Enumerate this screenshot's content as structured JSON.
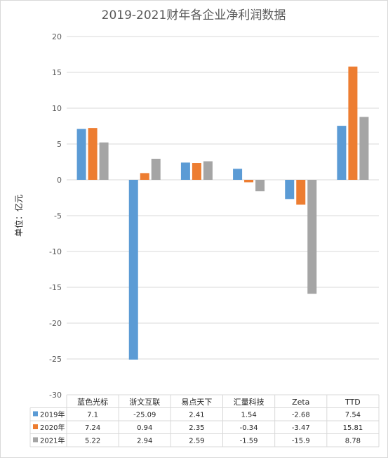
{
  "chart_data": {
    "type": "bar",
    "title": "2019-2021财年各企业净利润数据",
    "xlabel": "",
    "ylabel": "单位：亿元",
    "ylim": [
      -30,
      20
    ],
    "yticks": [
      20,
      15,
      10,
      5,
      0,
      -5,
      -10,
      -15,
      -20,
      -25,
      -30
    ],
    "grid": true,
    "legend": "data-table",
    "categories": [
      "蓝色光标",
      "浙文互联",
      "易点天下",
      "汇量科技",
      "Zeta",
      "TTD"
    ],
    "series": [
      {
        "name": "2019年",
        "color": "#5b9bd5",
        "values": [
          7.1,
          -25.09,
          2.41,
          1.54,
          -2.68,
          7.54
        ]
      },
      {
        "name": "2020年",
        "color": "#ed7d31",
        "values": [
          7.24,
          0.94,
          2.35,
          -0.34,
          -3.47,
          15.81
        ]
      },
      {
        "name": "2021年",
        "color": "#a5a5a5",
        "values": [
          5.22,
          2.94,
          2.59,
          -1.59,
          -15.9,
          8.78
        ]
      }
    ],
    "table_values": [
      [
        "7.1",
        "-25.09",
        "2.41",
        "1.54",
        "-2.68",
        "7.54"
      ],
      [
        "7.24",
        "0.94",
        "2.35",
        "-0.34",
        "-3.47",
        "15.81"
      ],
      [
        "5.22",
        "2.94",
        "2.59",
        "-1.59",
        "-15.9",
        "8.78"
      ]
    ]
  }
}
